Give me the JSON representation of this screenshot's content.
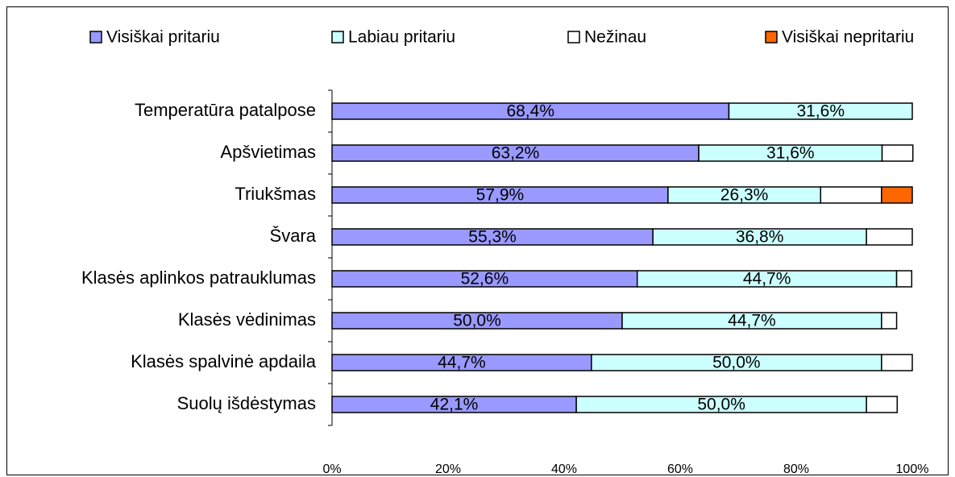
{
  "chart_data": {
    "type": "stacked_bar_horizontal",
    "categories": [
      "Temperatūra patalpose",
      "Apšvietimas",
      "Triukšmas",
      "Švara",
      "Klasės aplinkos patrauklumas",
      "Klasės vėdinimas",
      "Klasės spalvinė apdaila",
      "Suolų išdėstymas"
    ],
    "series": [
      {
        "name": "Visiškai pritariu",
        "color": "#9999ff",
        "values": [
          68.4,
          63.2,
          57.9,
          55.3,
          52.6,
          50.0,
          44.7,
          42.1
        ],
        "value_labels": [
          "68,4%",
          "63,2%",
          "57,9%",
          "55,3%",
          "52,6%",
          "50,0%",
          "44,7%",
          "42,1%"
        ]
      },
      {
        "name": "Labiau pritariu",
        "color": "#ccffff",
        "values": [
          31.6,
          31.6,
          26.3,
          36.8,
          44.7,
          44.7,
          50.0,
          50.0
        ],
        "value_labels": [
          "31,6%",
          "31,6%",
          "26,3%",
          "36,8%",
          "44,7%",
          "44,7%",
          "50,0%",
          "50,0%"
        ]
      },
      {
        "name": "Nežinau",
        "color": "#ffffff",
        "values": [
          0,
          5.3,
          10.5,
          7.9,
          2.6,
          2.6,
          5.3,
          5.3
        ]
      },
      {
        "name": "Visiškai nepritariu",
        "color": "#ff6600",
        "values": [
          0,
          0,
          5.3,
          0,
          0,
          0,
          0,
          0
        ]
      }
    ],
    "xlim": [
      0,
      100
    ],
    "xticks": [
      {
        "value": 0,
        "label": "0%"
      },
      {
        "value": 20,
        "label": "20%"
      },
      {
        "value": 40,
        "label": "40%"
      },
      {
        "value": 60,
        "label": "60%"
      },
      {
        "value": 80,
        "label": "80%"
      },
      {
        "value": 100,
        "label": "100%"
      }
    ],
    "legend": "top"
  }
}
